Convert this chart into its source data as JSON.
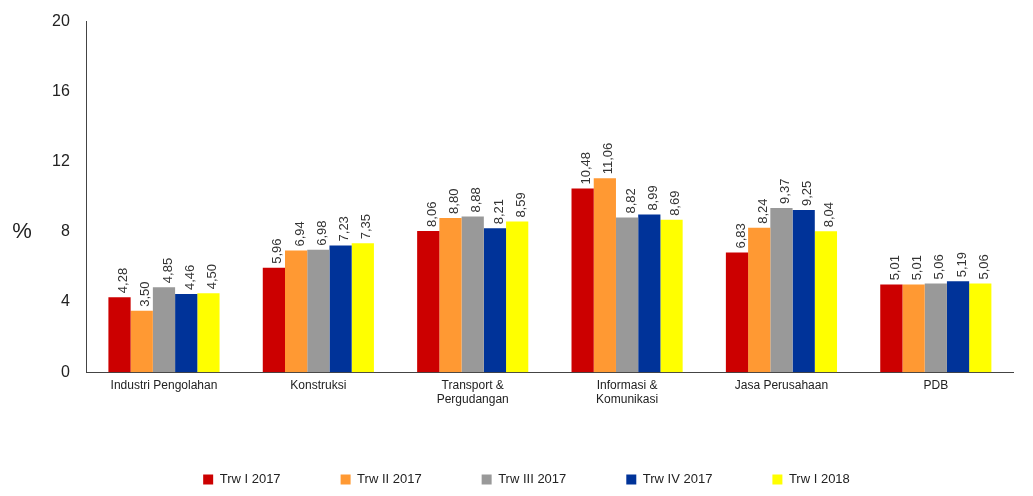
{
  "chart_data": {
    "type": "bar",
    "ylabel": "%",
    "categories": [
      "Industri Pengolahan",
      "Konstruksi",
      "Transport & Pergudangan",
      "Informasi & Komunikasi",
      "Jasa Perusahaan",
      "PDB"
    ],
    "series": [
      {
        "name": "Trw I 2017",
        "color": "#cc0000",
        "values": [
          4.28,
          5.96,
          8.06,
          10.48,
          6.83,
          5.01
        ],
        "value_labels": [
          "4,28",
          "5,96",
          "8,06",
          "10,48",
          "6,83",
          "5,01"
        ]
      },
      {
        "name": "Trw II 2017",
        "color": "#ff9933",
        "values": [
          3.5,
          6.94,
          8.8,
          11.06,
          8.24,
          5.01
        ],
        "value_labels": [
          "3,50",
          "6,94",
          "8,80",
          "11,06",
          "8,24",
          "5,01"
        ]
      },
      {
        "name": "Trw III 2017",
        "color": "#999999",
        "values": [
          4.85,
          6.98,
          8.88,
          8.82,
          9.37,
          5.06
        ],
        "value_labels": [
          "4,85",
          "6,98",
          "8,88",
          "8,82",
          "9,37",
          "5,06"
        ]
      },
      {
        "name": "Trw IV 2017",
        "color": "#003399",
        "values": [
          4.46,
          7.23,
          8.21,
          8.99,
          9.25,
          5.19
        ],
        "value_labels": [
          "4,46",
          "7,23",
          "8,21",
          "8,99",
          "9,25",
          "5,19"
        ]
      },
      {
        "name": "Trw I 2018",
        "color": "#ffff00",
        "values": [
          4.5,
          7.35,
          8.59,
          8.69,
          8.04,
          5.06
        ],
        "value_labels": [
          "4,50",
          "7,35",
          "8,59",
          "8,69",
          "8,04",
          "5,06"
        ]
      }
    ],
    "ylim": [
      0,
      20
    ],
    "yticks": [
      0,
      4,
      8,
      12,
      16,
      20
    ],
    "grid": false,
    "legend": "bottom"
  }
}
